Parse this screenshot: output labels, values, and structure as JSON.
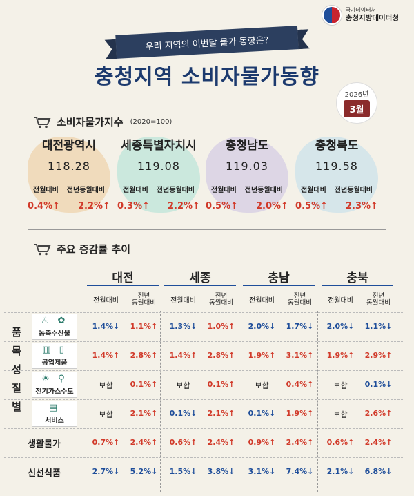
{
  "logo": {
    "line1": "국가데이터처",
    "line2": "충청지방데이터청"
  },
  "ribbon": "우리 지역의 이번달 물가 동향은?",
  "title": "충청지역 소비자물가동향",
  "badge": {
    "year": "2026년",
    "month": "3월"
  },
  "cpi_section": {
    "title": "소비자물가지수",
    "subtitle": "(2020=100)"
  },
  "regions": [
    {
      "name": "대전광역시",
      "index": "118.28",
      "mom_label": "전월대비",
      "yoy_label": "전년동월대비",
      "mom": "0.4%↑",
      "yoy": "2.2%↑",
      "color": "#e9b36b"
    },
    {
      "name": "세종특별자치시",
      "index": "119.08",
      "mom_label": "전월대비",
      "yoy_label": "전년동월대비",
      "mom": "0.3%↑",
      "yoy": "2.2%↑",
      "color": "#7fd6c8"
    },
    {
      "name": "충청남도",
      "index": "119.03",
      "mom_label": "전월대비",
      "yoy_label": "전년동월대비",
      "mom": "0.5%↑",
      "yoy": "2.0%↑",
      "color": "#b3a3e0"
    },
    {
      "name": "충청북도",
      "index": "119.58",
      "mom_label": "전월대비",
      "yoy_label": "전년동월대비",
      "mom": "0.5%↑",
      "yoy": "2.3%↑",
      "color": "#9fd0ee"
    }
  ],
  "trend_section": {
    "title": "주요 증감률 추이"
  },
  "table": {
    "regions": [
      "대전",
      "세종",
      "충남",
      "충북"
    ],
    "col_mom": "전월대비",
    "col_yoy_1": "전년",
    "col_yoy_2": "동월대비",
    "side_label": [
      "품",
      "목",
      "성",
      "질",
      "별"
    ],
    "rows": [
      {
        "name": "농축수산물",
        "icons": "♨ ✿",
        "values": [
          [
            "1.4%↓",
            "down"
          ],
          [
            "1.1%↑",
            "up"
          ],
          [
            "1.3%↓",
            "down"
          ],
          [
            "1.0%↑",
            "up"
          ],
          [
            "2.0%↓",
            "down"
          ],
          [
            "1.7%↓",
            "down"
          ],
          [
            "2.0%↓",
            "down"
          ],
          [
            "1.1%↓",
            "down"
          ]
        ]
      },
      {
        "name": "공업제품",
        "icons": "▥ ▯",
        "values": [
          [
            "1.4%↑",
            "up"
          ],
          [
            "2.8%↑",
            "up"
          ],
          [
            "1.4%↑",
            "up"
          ],
          [
            "2.8%↑",
            "up"
          ],
          [
            "1.9%↑",
            "up"
          ],
          [
            "3.1%↑",
            "up"
          ],
          [
            "1.9%↑",
            "up"
          ],
          [
            "2.9%↑",
            "up"
          ]
        ]
      },
      {
        "name": "전기가스수도",
        "icons": "☀ ⚲",
        "values": [
          [
            "보합",
            "flat"
          ],
          [
            "0.1%↑",
            "up"
          ],
          [
            "보합",
            "flat"
          ],
          [
            "0.1%↑",
            "up"
          ],
          [
            "보합",
            "flat"
          ],
          [
            "0.4%↑",
            "up"
          ],
          [
            "보합",
            "flat"
          ],
          [
            "0.1%↓",
            "down"
          ]
        ]
      },
      {
        "name": "서비스",
        "icons": "▤",
        "values": [
          [
            "보합",
            "flat"
          ],
          [
            "2.1%↑",
            "up"
          ],
          [
            "0.1%↓",
            "down"
          ],
          [
            "2.1%↑",
            "up"
          ],
          [
            "0.1%↓",
            "down"
          ],
          [
            "1.9%↑",
            "up"
          ],
          [
            "보합",
            "flat"
          ],
          [
            "2.6%↑",
            "up"
          ]
        ]
      },
      {
        "name": "생활물가",
        "icons": "",
        "values": [
          [
            "0.7%↑",
            "up"
          ],
          [
            "2.4%↑",
            "up"
          ],
          [
            "0.6%↑",
            "up"
          ],
          [
            "2.4%↑",
            "up"
          ],
          [
            "0.9%↑",
            "up"
          ],
          [
            "2.4%↑",
            "up"
          ],
          [
            "0.6%↑",
            "up"
          ],
          [
            "2.4%↑",
            "up"
          ]
        ]
      },
      {
        "name": "신선식품",
        "icons": "",
        "values": [
          [
            "2.7%↓",
            "down"
          ],
          [
            "5.2%↓",
            "down"
          ],
          [
            "1.5%↓",
            "down"
          ],
          [
            "3.8%↓",
            "down"
          ],
          [
            "3.1%↓",
            "down"
          ],
          [
            "7.4%↓",
            "down"
          ],
          [
            "2.1%↓",
            "down"
          ],
          [
            "6.8%↓",
            "down"
          ]
        ]
      }
    ]
  },
  "colors": {
    "up": "#d13a2a",
    "down": "#1f4e9a",
    "title": "#1c3a6e",
    "ribbon": "#2c3f5f",
    "badge": "#8b2b2b"
  }
}
